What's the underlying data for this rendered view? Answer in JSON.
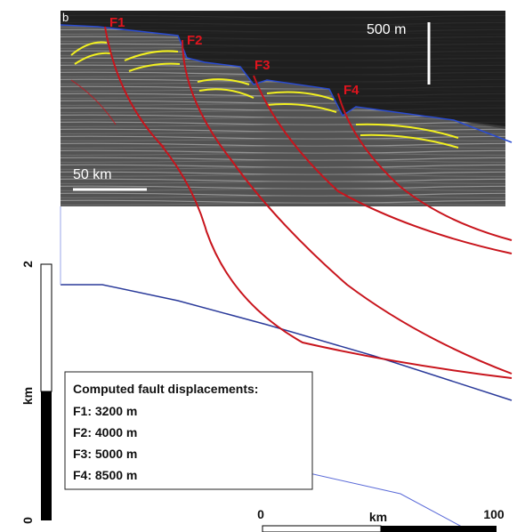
{
  "panel_label": "b",
  "faults": [
    "F1",
    "F2",
    "F3",
    "F4"
  ],
  "vertical_scale": "500 m",
  "horizontal_scale": "50 km",
  "depth_scale": {
    "top": "2",
    "unit": "km",
    "bottom": "0"
  },
  "distance_scale": {
    "left": "0",
    "unit": "km",
    "right": "100"
  },
  "displacement_box": {
    "title": "Computed fault displacements:",
    "lines": [
      "F1: 3200 m",
      "F2: 4000 m",
      "F3: 5000 m",
      "F4: 8500 m"
    ]
  }
}
